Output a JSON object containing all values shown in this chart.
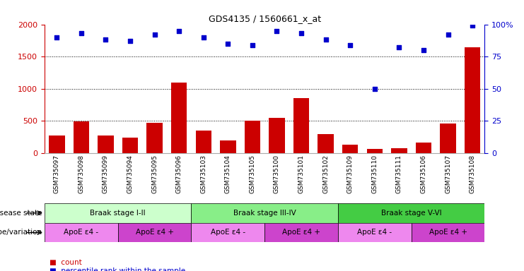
{
  "title": "GDS4135 / 1560661_x_at",
  "samples": [
    "GSM735097",
    "GSM735098",
    "GSM735099",
    "GSM735094",
    "GSM735095",
    "GSM735096",
    "GSM735103",
    "GSM735104",
    "GSM735105",
    "GSM735100",
    "GSM735101",
    "GSM735102",
    "GSM735109",
    "GSM735110",
    "GSM735111",
    "GSM735106",
    "GSM735107",
    "GSM735108"
  ],
  "counts": [
    270,
    490,
    270,
    240,
    470,
    1100,
    350,
    200,
    500,
    550,
    850,
    300,
    130,
    60,
    80,
    160,
    460,
    1640
  ],
  "percentiles": [
    90,
    93,
    88,
    87,
    92,
    95,
    90,
    85,
    84,
    95,
    93,
    88,
    84,
    50,
    82,
    80,
    92,
    99
  ],
  "bar_color": "#cc0000",
  "dot_color": "#0000cc",
  "ylim_left": [
    0,
    2000
  ],
  "yticks_left": [
    0,
    500,
    1000,
    1500,
    2000
  ],
  "yticks_right_vals": [
    0,
    500,
    1000,
    1500,
    2000
  ],
  "yticklabels_right": [
    "0",
    "25",
    "50",
    "75",
    "100%"
  ],
  "grid_lines": [
    500,
    1000,
    1500
  ],
  "disease_states": [
    {
      "label": "Braak stage I-II",
      "start": 0,
      "end": 6,
      "color": "#ccffcc"
    },
    {
      "label": "Braak stage III-IV",
      "start": 6,
      "end": 12,
      "color": "#88ee88"
    },
    {
      "label": "Braak stage V-VI",
      "start": 12,
      "end": 18,
      "color": "#44cc44"
    }
  ],
  "genotypes": [
    {
      "label": "ApoE ε4 -",
      "start": 0,
      "end": 3,
      "color": "#ee88ee"
    },
    {
      "label": "ApoE ε4 +",
      "start": 3,
      "end": 6,
      "color": "#cc44cc"
    },
    {
      "label": "ApoE ε4 -",
      "start": 6,
      "end": 9,
      "color": "#ee88ee"
    },
    {
      "label": "ApoE ε4 +",
      "start": 9,
      "end": 12,
      "color": "#cc44cc"
    },
    {
      "label": "ApoE ε4 -",
      "start": 12,
      "end": 15,
      "color": "#ee88ee"
    },
    {
      "label": "ApoE ε4 +",
      "start": 15,
      "end": 18,
      "color": "#cc44cc"
    }
  ],
  "bg_color": "#ffffff",
  "xtick_bg": "#cccccc",
  "figsize": [
    7.41,
    3.84
  ],
  "dpi": 100
}
